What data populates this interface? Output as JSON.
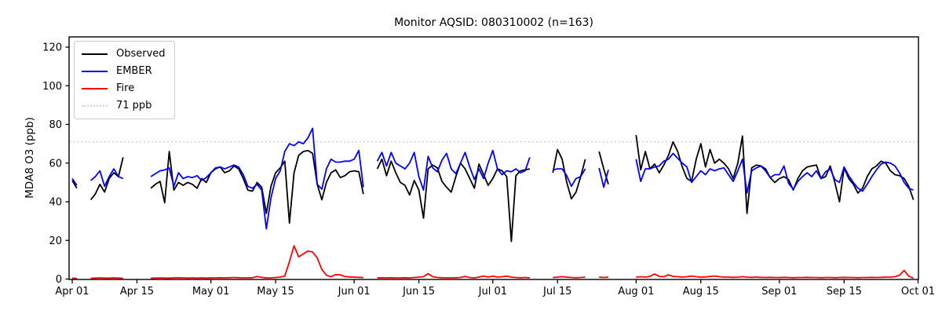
{
  "title": "Monitor AQSID: 080310002 (n=163)",
  "ylabel": "MDA8 O3 (ppb)",
  "colors": {
    "observed": "#000000",
    "ember": "#0000ff",
    "fire": "#ff0000",
    "threshold": "#d3d3d3",
    "frame": "#000000",
    "background": "#ffffff"
  },
  "legend": {
    "items": [
      {
        "label": "Observed",
        "color": "#000000",
        "dash": "solid"
      },
      {
        "label": "EMBER",
        "color": "#0000ff",
        "dash": "solid"
      },
      {
        "label": "Fire",
        "color": "#ff0000",
        "dash": "solid"
      },
      {
        "label": "71 ppb",
        "color": "#d3d3d3",
        "dash": "dotted"
      }
    ]
  },
  "chart_data": {
    "type": "line",
    "title": "Monitor AQSID: 080310002 (n=163)",
    "xlabel": "",
    "ylabel": "MDA8 O3 (ppb)",
    "ylim": [
      0,
      125
    ],
    "y_ticks": [
      0,
      20,
      40,
      60,
      80,
      100,
      120
    ],
    "x_tick_labels": [
      "Apr 01",
      "Apr 15",
      "May 01",
      "May 15",
      "Jun 01",
      "Jun 15",
      "Jul 01",
      "Jul 15",
      "Aug 01",
      "Aug 15",
      "Sep 01",
      "Sep 15",
      "Oct 01"
    ],
    "x_tick_days": [
      0,
      14,
      30,
      44,
      61,
      75,
      91,
      105,
      122,
      136,
      153,
      167,
      183
    ],
    "x_range_days": 183,
    "x_description": "daily values, index 0 = Apr 01 through index 182 = Sep 30; null = missing day (n=163 observed days)",
    "grid": false,
    "legend_position": "upper left",
    "threshold": {
      "value": 71,
      "label": "71 ppb",
      "color": "#d3d3d3",
      "style": "dotted"
    },
    "series": [
      {
        "name": "Observed",
        "color": "#000000",
        "values": [
          51,
          47,
          null,
          null,
          41,
          44,
          49,
          45,
          52,
          55,
          53,
          63,
          null,
          null,
          null,
          null,
          null,
          47,
          49,
          50.5,
          39.5,
          66,
          46,
          50,
          48.5,
          50,
          49,
          47,
          52,
          50,
          55,
          57,
          58,
          55,
          56,
          58.5,
          57,
          52,
          46,
          45.5,
          50,
          47.5,
          34,
          48,
          55,
          57.5,
          61,
          29,
          55,
          64,
          66,
          66.5,
          65,
          49,
          41,
          50,
          55,
          56.5,
          52.5,
          53.5,
          55.5,
          56,
          55.5,
          44,
          null,
          null,
          57,
          62,
          53.5,
          61,
          55,
          50,
          48.5,
          43.5,
          51,
          46,
          31.5,
          57,
          59,
          57.5,
          50.5,
          47.5,
          45,
          53,
          60,
          57,
          52,
          47,
          59.5,
          54,
          48.5,
          52,
          57,
          56,
          53,
          19.5,
          53.5,
          56,
          56.5,
          57,
          null,
          null,
          null,
          null,
          55,
          67,
          62,
          50,
          41.5,
          45,
          53,
          62,
          null,
          null,
          66,
          57,
          49,
          null,
          null,
          null,
          null,
          null,
          74.5,
          56.5,
          66,
          57,
          59.5,
          55,
          59,
          64,
          71,
          66,
          58,
          52,
          50.5,
          62,
          70,
          58,
          67,
          60,
          62,
          60,
          57,
          52,
          60,
          74,
          34,
          57.5,
          59,
          58.5,
          57,
          52.5,
          50,
          52,
          53,
          51.5,
          46,
          52,
          56,
          58,
          58.5,
          59,
          52,
          53,
          58.5,
          50,
          40,
          57.5,
          52,
          49,
          44.5,
          47,
          53,
          57,
          58.5,
          61,
          60,
          56,
          54,
          53.5,
          52,
          48,
          41
        ]
      },
      {
        "name": "EMBER",
        "color": "#0000ff",
        "values": [
          52,
          48.5,
          null,
          null,
          51,
          53,
          56,
          48,
          53,
          57,
          53,
          52,
          null,
          null,
          null,
          null,
          null,
          53,
          54.5,
          56,
          56.5,
          57.5,
          48,
          55,
          52,
          53,
          52.5,
          53.5,
          51,
          52.5,
          55,
          57.5,
          58,
          57,
          58,
          59,
          58,
          54,
          48,
          47,
          49,
          46,
          26,
          42,
          52,
          56,
          66,
          70,
          69,
          71,
          70,
          73,
          78,
          49,
          46.5,
          57,
          62,
          60.5,
          60.5,
          61,
          61,
          62,
          66.5,
          47.5,
          null,
          null,
          61,
          65.5,
          58.5,
          65.5,
          60,
          58.5,
          57,
          60,
          65.5,
          53,
          46,
          63.5,
          57.5,
          55.5,
          61.5,
          65,
          57,
          54.5,
          60,
          65.5,
          58,
          51.5,
          57,
          52,
          60,
          66.5,
          57,
          54,
          56,
          55.5,
          57,
          55,
          56,
          63,
          null,
          null,
          null,
          null,
          56.5,
          57,
          57,
          53.5,
          48,
          52,
          53,
          57,
          null,
          null,
          57.5,
          47.5,
          56.5,
          null,
          null,
          null,
          null,
          null,
          62,
          50.5,
          57,
          57,
          58,
          58.5,
          61,
          62,
          65,
          62.5,
          60,
          58,
          50,
          53,
          56,
          54,
          57,
          56,
          57,
          57.5,
          54,
          50.5,
          56,
          62,
          44.5,
          56,
          57.5,
          58.5,
          56,
          52.5,
          54,
          54,
          58.5,
          49.5,
          46.5,
          50.5,
          53,
          55,
          53,
          56,
          52,
          55.5,
          57,
          51.5,
          50,
          58,
          53.5,
          50,
          47,
          45.5,
          49,
          53,
          56.5,
          59.5,
          60.5,
          60,
          58.5,
          55,
          50,
          47,
          46
        ]
      },
      {
        "name": "Fire",
        "color": "#ff0000",
        "values": [
          0.5,
          0.3,
          null,
          null,
          0.4,
          0.5,
          0.6,
          0.5,
          0.5,
          0.6,
          0.5,
          0.4,
          null,
          null,
          null,
          null,
          null,
          0.5,
          0.5,
          0.6,
          0.5,
          0.5,
          0.6,
          0.7,
          0.6,
          0.5,
          0.6,
          0.5,
          0.6,
          0.5,
          0.6,
          0.6,
          0.7,
          0.6,
          0.7,
          0.8,
          0.7,
          0.6,
          0.6,
          0.7,
          1.3,
          0.9,
          0.6,
          0.6,
          0.8,
          1.0,
          1.5,
          9.0,
          17.2,
          11.5,
          13.0,
          14.5,
          14.0,
          11.0,
          5.0,
          2.0,
          1.2,
          2.3,
          2.2,
          1.3,
          1.1,
          1.0,
          0.9,
          0.8,
          null,
          null,
          0.6,
          0.7,
          0.6,
          0.7,
          0.6,
          0.6,
          0.7,
          0.6,
          0.8,
          1.0,
          1.2,
          2.8,
          1.2,
          0.8,
          0.7,
          0.6,
          0.6,
          0.7,
          0.8,
          1.4,
          0.8,
          0.6,
          1.0,
          1.6,
          1.0,
          1.5,
          1.0,
          1.2,
          1.5,
          1.0,
          0.8,
          0.7,
          0.8,
          0.6,
          null,
          null,
          null,
          null,
          0.8,
          1.0,
          1.2,
          1.0,
          0.8,
          0.7,
          0.8,
          1.0,
          null,
          null,
          1.0,
          0.8,
          1.0,
          null,
          null,
          null,
          null,
          null,
          1.0,
          1.2,
          1.0,
          1.4,
          2.6,
          1.4,
          1.2,
          2.2,
          1.4,
          1.2,
          1.0,
          1.2,
          1.6,
          1.2,
          1.0,
          1.1,
          1.4,
          1.6,
          1.2,
          1.0,
          1.0,
          0.9,
          1.0,
          1.2,
          1.0,
          0.9,
          1.0,
          0.9,
          0.8,
          0.9,
          0.8,
          0.8,
          0.9,
          0.8,
          0.7,
          0.8,
          0.8,
          0.9,
          0.8,
          0.8,
          0.7,
          0.8,
          0.8,
          0.7,
          0.8,
          0.9,
          0.8,
          0.8,
          0.7,
          0.8,
          0.8,
          0.9,
          0.8,
          0.9,
          1.0,
          1.0,
          1.2,
          2.0,
          4.5,
          1.5,
          0.5
        ]
      }
    ]
  }
}
